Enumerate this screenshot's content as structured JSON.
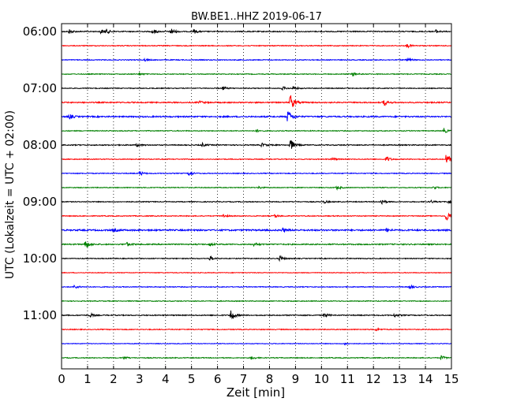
{
  "chart_data": {
    "type": "line",
    "title": "BW.BE1..HHZ 2019-06-17",
    "xlabel": "Zeit  [min]",
    "ylabel": "UTC (Lokalzeit = UTC + 02:00)",
    "xlim": [
      0,
      15
    ],
    "x_ticks": [
      "0",
      "1",
      "2",
      "3",
      "4",
      "5",
      "6",
      "7",
      "8",
      "9",
      "10",
      "11",
      "12",
      "13",
      "14",
      "15"
    ],
    "y_tick_labels": [
      "06:00",
      "07:00",
      "08:00",
      "09:00",
      "10:00",
      "11:00"
    ],
    "grid": "vertical dotted",
    "colors": [
      "#000000",
      "#ff0000",
      "#0000ff",
      "#008000"
    ],
    "trace_interval_min": 15,
    "series": [
      {
        "start": "06:00",
        "color": "#000000",
        "noise": 0.6,
        "events": [
          [
            0.3,
            3
          ],
          [
            1.5,
            2.5
          ],
          [
            1.7,
            3
          ],
          [
            3.5,
            3.5
          ],
          [
            4.2,
            5
          ],
          [
            5.1,
            2.5
          ],
          [
            14.4,
            2
          ]
        ]
      },
      {
        "start": "06:15",
        "color": "#ff0000",
        "noise": 0.5,
        "events": [
          [
            13.3,
            2.5
          ]
        ]
      },
      {
        "start": "06:30",
        "color": "#0000ff",
        "noise": 0.5,
        "events": [
          [
            3.2,
            1.5
          ],
          [
            13.3,
            2.5
          ]
        ]
      },
      {
        "start": "06:45",
        "color": "#008000",
        "noise": 0.5,
        "events": [
          [
            3.0,
            1.5
          ],
          [
            11.2,
            3
          ]
        ]
      },
      {
        "start": "07:00",
        "color": "#000000",
        "noise": 0.5,
        "events": [
          [
            6.2,
            2.5
          ],
          [
            8.5,
            2
          ],
          [
            8.9,
            2.5
          ]
        ]
      },
      {
        "start": "07:15",
        "color": "#ff0000",
        "noise": 0.7,
        "events": [
          [
            5.3,
            2
          ],
          [
            8.8,
            12
          ],
          [
            12.4,
            4
          ]
        ]
      },
      {
        "start": "07:30",
        "color": "#0000ff",
        "noise": 0.8,
        "events": [
          [
            0.3,
            3
          ],
          [
            8.7,
            9
          ]
        ]
      },
      {
        "start": "07:45",
        "color": "#008000",
        "noise": 0.5,
        "events": [
          [
            7.5,
            1.5
          ],
          [
            14.7,
            3.5
          ]
        ]
      },
      {
        "start": "08:00",
        "color": "#000000",
        "noise": 0.6,
        "events": [
          [
            2.9,
            2
          ],
          [
            5.4,
            2.5
          ],
          [
            7.7,
            2.5
          ],
          [
            8.8,
            8
          ]
        ]
      },
      {
        "start": "08:15",
        "color": "#ff0000",
        "noise": 0.5,
        "events": [
          [
            10.4,
            2
          ],
          [
            12.5,
            4
          ],
          [
            14.8,
            7
          ]
        ]
      },
      {
        "start": "08:30",
        "color": "#0000ff",
        "noise": 0.5,
        "events": [
          [
            3.0,
            3
          ],
          [
            4.9,
            3
          ]
        ]
      },
      {
        "start": "08:45",
        "color": "#008000",
        "noise": 0.5,
        "events": [
          [
            7.6,
            1.5
          ],
          [
            10.6,
            2.5
          ],
          [
            14.3,
            2
          ]
        ]
      },
      {
        "start": "09:00",
        "color": "#000000",
        "noise": 0.5,
        "events": [
          [
            10.1,
            2
          ],
          [
            12.3,
            4
          ],
          [
            14.2,
            2
          ],
          [
            14.9,
            3
          ]
        ]
      },
      {
        "start": "09:15",
        "color": "#ff0000",
        "noise": 0.5,
        "events": [
          [
            6.2,
            2.5
          ],
          [
            8.2,
            2.5
          ],
          [
            14.8,
            8
          ]
        ]
      },
      {
        "start": "09:30",
        "color": "#0000ff",
        "noise": 0.9,
        "events": [
          [
            2.0,
            2
          ],
          [
            8.5,
            2.5
          ],
          [
            12.5,
            2.5
          ]
        ]
      },
      {
        "start": "09:45",
        "color": "#008000",
        "noise": 0.7,
        "events": [
          [
            0.9,
            6
          ],
          [
            2.5,
            2.5
          ],
          [
            5.7,
            2
          ],
          [
            7.4,
            2.5
          ]
        ]
      },
      {
        "start": "10:00",
        "color": "#000000",
        "noise": 0.5,
        "events": [
          [
            5.7,
            3
          ],
          [
            8.4,
            3.5
          ]
        ]
      },
      {
        "start": "10:15",
        "color": "#ff0000",
        "noise": 0.4,
        "events": []
      },
      {
        "start": "10:30",
        "color": "#0000ff",
        "noise": 0.5,
        "events": [
          [
            0.5,
            2.5
          ],
          [
            13.4,
            3
          ]
        ]
      },
      {
        "start": "10:45",
        "color": "#008000",
        "noise": 0.5,
        "events": []
      },
      {
        "start": "11:00",
        "color": "#000000",
        "noise": 0.6,
        "events": [
          [
            1.1,
            2.5
          ],
          [
            6.5,
            9
          ],
          [
            10.1,
            3
          ],
          [
            12.8,
            2
          ]
        ]
      },
      {
        "start": "11:15",
        "color": "#ff0000",
        "noise": 0.5,
        "events": [
          [
            12.1,
            2
          ]
        ]
      },
      {
        "start": "11:30",
        "color": "#0000ff",
        "noise": 0.4,
        "events": [
          [
            10.9,
            1.5
          ]
        ]
      },
      {
        "start": "11:45",
        "color": "#008000",
        "noise": 0.5,
        "events": [
          [
            2.4,
            2
          ],
          [
            7.3,
            2
          ],
          [
            14.6,
            3
          ]
        ]
      }
    ]
  }
}
